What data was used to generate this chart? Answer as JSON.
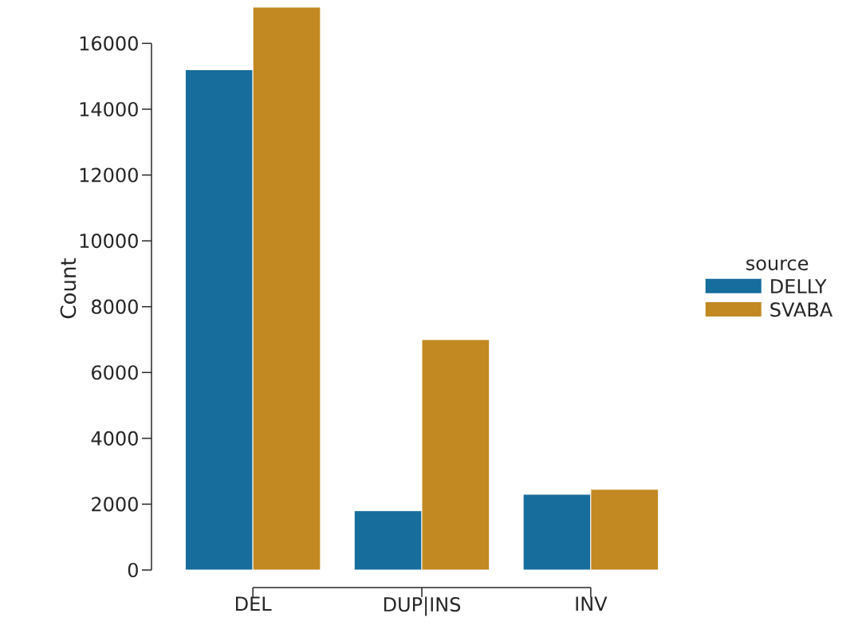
{
  "chart_data": {
    "type": "bar",
    "ylabel": "Count",
    "legend_title": "source",
    "categories": [
      "DEL",
      "DUP|INS",
      "INV"
    ],
    "series": [
      {
        "name": "DELLY",
        "color": "#176d9c",
        "values": [
          15200,
          1800,
          2300
        ]
      },
      {
        "name": "SVABA",
        "color": "#c28821",
        "values": [
          17100,
          7000,
          2450
        ]
      }
    ],
    "ylim": [
      0,
      17100
    ],
    "yticks": [
      0,
      2000,
      4000,
      6000,
      8000,
      10000,
      12000,
      14000,
      16000
    ],
    "legend": "right"
  }
}
